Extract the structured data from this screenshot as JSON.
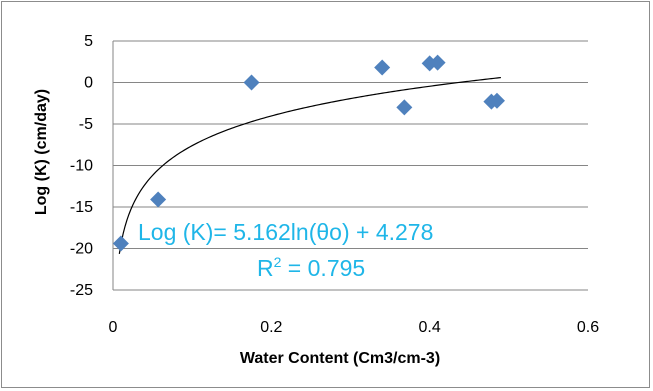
{
  "chart_data": {
    "type": "scatter",
    "title": "",
    "xlabel": "Water Content (Cm3/cm-3)",
    "ylabel": "Log (K) (cm/day)",
    "xlim": [
      0,
      0.6
    ],
    "ylim": [
      -25,
      5
    ],
    "x_ticks": [
      "0",
      "0.2",
      "0.4",
      "0.6"
    ],
    "y_ticks": [
      "5",
      "0",
      "-5",
      "-10",
      "-15",
      "-20",
      "-25"
    ],
    "grid": "horizontal",
    "legend": "none",
    "marker_color": "#4f81bd",
    "trendline_color": "#000000",
    "annotation_color": "#1fb6e8",
    "series": [
      {
        "points": [
          {
            "x": 0.01,
            "y": -19.4
          },
          {
            "x": 0.057,
            "y": -14.1
          },
          {
            "x": 0.175,
            "y": 0.0
          },
          {
            "x": 0.34,
            "y": 1.8
          },
          {
            "x": 0.368,
            "y": -3.0
          },
          {
            "x": 0.4,
            "y": 2.3
          },
          {
            "x": 0.41,
            "y": 2.4
          },
          {
            "x": 0.478,
            "y": -2.3
          },
          {
            "x": 0.485,
            "y": -2.2
          }
        ]
      }
    ],
    "trendline": {
      "type": "logarithmic",
      "a": 5.162,
      "b": 4.278,
      "x_range": [
        0.008,
        0.49
      ]
    },
    "annotations": {
      "equation": "Log (K)= 5.162ln(θo) + 4.278",
      "r2_prefix": "R",
      "r2_sup": "2",
      "r2_rest": " = 0.795"
    }
  }
}
